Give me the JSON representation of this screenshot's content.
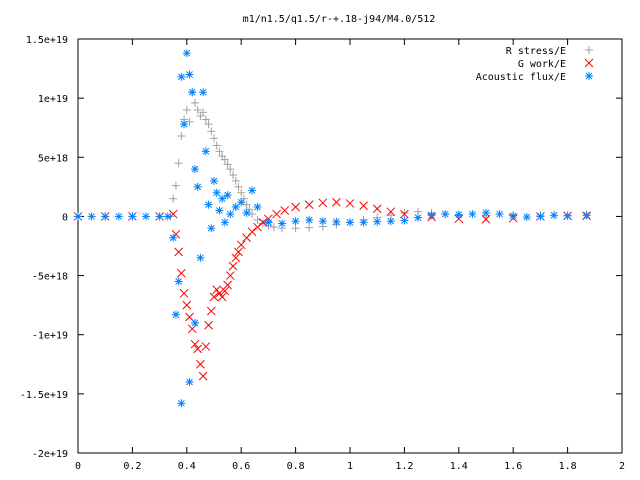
{
  "chart_data": {
    "type": "scatter",
    "title": "m1/n1.5/q1.5/r-+.18-j94/M4.0/512",
    "xlabel": "",
    "ylabel": "",
    "xlim": [
      0,
      2
    ],
    "ylim": [
      -2e+19,
      1.5e+19
    ],
    "x_ticks": [
      "0",
      "0.2",
      "0.4",
      "0.6",
      "0.8",
      "1",
      "1.2",
      "1.4",
      "1.6",
      "1.8",
      "2"
    ],
    "y_ticks": [
      "1.5e+19",
      "1e+19",
      "5e+18",
      "0",
      "-5e+18",
      "-1e+19",
      "-1.5e+19",
      "-2e+19"
    ],
    "legend_position": "top-right",
    "grid": false,
    "series": [
      {
        "name": "R stress/E",
        "marker": "plus",
        "color": "#a0a0a0",
        "points": [
          [
            0.0,
            0
          ],
          [
            0.1,
            0
          ],
          [
            0.2,
            0
          ],
          [
            0.3,
            0
          ],
          [
            0.34,
            0
          ],
          [
            0.35,
            1.5e+18
          ],
          [
            0.36,
            2.6e+18
          ],
          [
            0.37,
            4.5e+18
          ],
          [
            0.38,
            6.8e+18
          ],
          [
            0.39,
            8.2e+18
          ],
          [
            0.4,
            9e+18
          ],
          [
            0.41,
            8e+18
          ],
          [
            0.42,
            1.05e+19
          ],
          [
            0.43,
            9.6e+18
          ],
          [
            0.44,
            9e+18
          ],
          [
            0.45,
            8.5e+18
          ],
          [
            0.46,
            8.8e+18
          ],
          [
            0.47,
            8.2e+18
          ],
          [
            0.48,
            7.8e+18
          ],
          [
            0.49,
            7.2e+18
          ],
          [
            0.5,
            6.6e+18
          ],
          [
            0.51,
            6e+18
          ],
          [
            0.52,
            5.5e+18
          ],
          [
            0.53,
            5.1e+18
          ],
          [
            0.54,
            4.8e+18
          ],
          [
            0.55,
            4.4e+18
          ],
          [
            0.56,
            4e+18
          ],
          [
            0.57,
            3.5e+18
          ],
          [
            0.58,
            3e+18
          ],
          [
            0.59,
            2.5e+18
          ],
          [
            0.6,
            2e+18
          ],
          [
            0.61,
            1.5e+18
          ],
          [
            0.62,
            1e+18
          ],
          [
            0.63,
            6e+17
          ],
          [
            0.64,
            2e+17
          ],
          [
            0.66,
            -3e+17
          ],
          [
            0.68,
            -6e+17
          ],
          [
            0.7,
            -8e+17
          ],
          [
            0.72,
            -9e+17
          ],
          [
            0.75,
            -1e+18
          ],
          [
            0.8,
            -1e+18
          ],
          [
            0.85,
            -9.5e+17
          ],
          [
            0.9,
            -8.5e+17
          ],
          [
            0.95,
            -7e+17
          ],
          [
            1.0,
            -5e+17
          ],
          [
            1.05,
            -3e+17
          ],
          [
            1.1,
            -1e+17
          ],
          [
            1.15,
            1e+17
          ],
          [
            1.2,
            3e+17
          ],
          [
            1.25,
            4e+17
          ],
          [
            1.3,
            3e+17
          ],
          [
            1.35,
            2e+17
          ],
          [
            1.4,
            1e+17
          ],
          [
            1.5,
            5e+16
          ],
          [
            1.6,
            1e+17
          ],
          [
            1.7,
            1e+17
          ],
          [
            1.8,
            1e+17
          ],
          [
            1.87,
            1e+17
          ]
        ]
      },
      {
        "name": "G work/E",
        "marker": "cross",
        "color": "#ff0000",
        "points": [
          [
            0.0,
            0
          ],
          [
            0.1,
            0
          ],
          [
            0.2,
            0
          ],
          [
            0.3,
            0
          ],
          [
            0.35,
            2e+17
          ],
          [
            0.36,
            -1.5e+18
          ],
          [
            0.37,
            -3e+18
          ],
          [
            0.38,
            -4.8e+18
          ],
          [
            0.39,
            -6.5e+18
          ],
          [
            0.4,
            -7.5e+18
          ],
          [
            0.41,
            -8.5e+18
          ],
          [
            0.42,
            -9.5e+18
          ],
          [
            0.43,
            -1.08e+19
          ],
          [
            0.44,
            -1.12e+19
          ],
          [
            0.45,
            -1.25e+19
          ],
          [
            0.46,
            -1.35e+19
          ],
          [
            0.47,
            -1.1e+19
          ],
          [
            0.48,
            -9.2e+18
          ],
          [
            0.49,
            -8e+18
          ],
          [
            0.5,
            -6.8e+18
          ],
          [
            0.51,
            -6.2e+18
          ],
          [
            0.52,
            -6.5e+18
          ],
          [
            0.53,
            -6.8e+18
          ],
          [
            0.54,
            -6.3e+18
          ],
          [
            0.55,
            -5.8e+18
          ],
          [
            0.56,
            -5e+18
          ],
          [
            0.57,
            -4.2e+18
          ],
          [
            0.58,
            -3.5e+18
          ],
          [
            0.59,
            -3e+18
          ],
          [
            0.6,
            -2.4e+18
          ],
          [
            0.62,
            -1.8e+18
          ],
          [
            0.64,
            -1.3e+18
          ],
          [
            0.66,
            -9e+17
          ],
          [
            0.68,
            -5e+17
          ],
          [
            0.7,
            -2e+17
          ],
          [
            0.73,
            2e+17
          ],
          [
            0.76,
            5e+17
          ],
          [
            0.8,
            8e+17
          ],
          [
            0.85,
            1e+18
          ],
          [
            0.9,
            1.15e+18
          ],
          [
            0.95,
            1.2e+18
          ],
          [
            1.0,
            1.1e+18
          ],
          [
            1.05,
            9e+17
          ],
          [
            1.1,
            6.5e+17
          ],
          [
            1.15,
            4e+17
          ],
          [
            1.2,
            2e+17
          ],
          [
            1.3,
            -5e+16
          ],
          [
            1.4,
            -2e+17
          ],
          [
            1.5,
            -2.5e+17
          ],
          [
            1.6,
            -1.5e+17
          ],
          [
            1.7,
            0.0
          ],
          [
            1.8,
            5e+16
          ],
          [
            1.87,
            5e+16
          ]
        ]
      },
      {
        "name": "Acoustic flux/E",
        "marker": "star",
        "color": "#0080ff",
        "points": [
          [
            0.0,
            0
          ],
          [
            0.05,
            0
          ],
          [
            0.1,
            0
          ],
          [
            0.15,
            0
          ],
          [
            0.2,
            0
          ],
          [
            0.25,
            0
          ],
          [
            0.3,
            0
          ],
          [
            0.33,
            0
          ],
          [
            0.35,
            -1.8e+18
          ],
          [
            0.36,
            -8.3e+18
          ],
          [
            0.37,
            -5.5e+18
          ],
          [
            0.38,
            1.18e+19
          ],
          [
            0.39,
            7.8e+18
          ],
          [
            0.4,
            1.38e+19
          ],
          [
            0.41,
            1.2e+19
          ],
          [
            0.42,
            1.05e+19
          ],
          [
            0.43,
            4e+18
          ],
          [
            0.44,
            2.5e+18
          ],
          [
            0.45,
            -3.5e+18
          ],
          [
            0.38,
            -1.58e+19
          ],
          [
            0.41,
            -1.4e+19
          ],
          [
            0.43,
            -9e+18
          ],
          [
            0.46,
            1.05e+19
          ],
          [
            0.47,
            5.5e+18
          ],
          [
            0.48,
            1e+18
          ],
          [
            0.49,
            -1e+18
          ],
          [
            0.5,
            3e+18
          ],
          [
            0.51,
            2e+18
          ],
          [
            0.52,
            5e+17
          ],
          [
            0.53,
            1.5e+18
          ],
          [
            0.54,
            -5e+17
          ],
          [
            0.55,
            1.8e+18
          ],
          [
            0.56,
            2e+17
          ],
          [
            0.58,
            8e+17
          ],
          [
            0.6,
            1.2e+18
          ],
          [
            0.62,
            3e+17
          ],
          [
            0.64,
            2.2e+18
          ],
          [
            0.66,
            8e+17
          ],
          [
            0.7,
            -5e+17
          ],
          [
            0.75,
            -6e+17
          ],
          [
            0.8,
            -4e+17
          ],
          [
            0.85,
            -3e+17
          ],
          [
            0.9,
            -4e+17
          ],
          [
            0.95,
            -4.5e+17
          ],
          [
            1.0,
            -5e+17
          ],
          [
            1.05,
            -5e+17
          ],
          [
            1.1,
            -4.5e+17
          ],
          [
            1.15,
            -4e+17
          ],
          [
            1.2,
            -3.5e+17
          ],
          [
            1.25,
            -1e+17
          ],
          [
            1.3,
            1e+17
          ],
          [
            1.35,
            2e+17
          ],
          [
            1.4,
            1.5e+17
          ],
          [
            1.45,
            2e+17
          ],
          [
            1.5,
            3e+17
          ],
          [
            1.55,
            2e+17
          ],
          [
            1.6,
            5e+16
          ],
          [
            1.65,
            -5e+16
          ],
          [
            1.7,
            0.0
          ],
          [
            1.75,
            1e+17
          ],
          [
            1.8,
            5e+16
          ],
          [
            1.87,
            1e+17
          ]
        ]
      }
    ]
  }
}
